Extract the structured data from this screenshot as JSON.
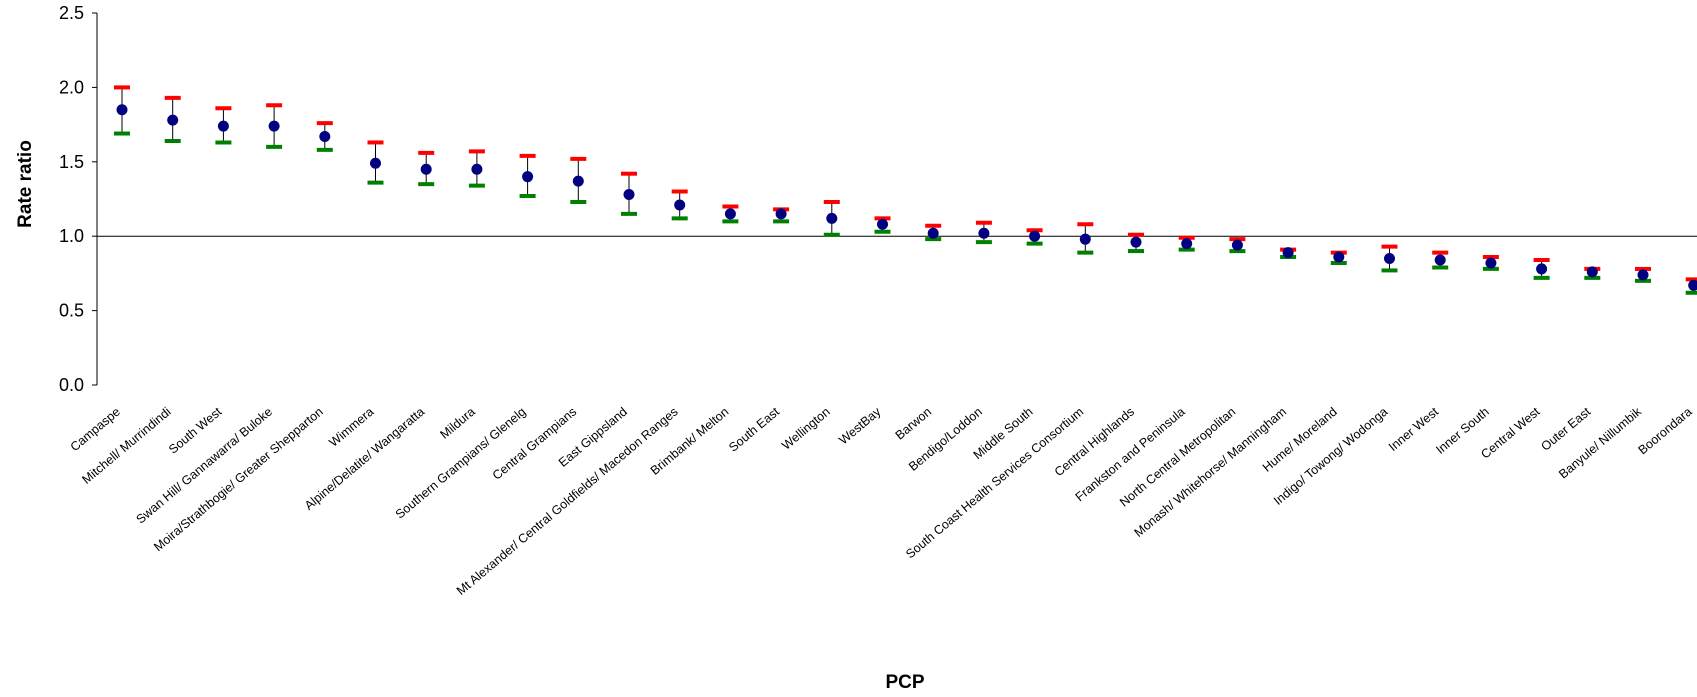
{
  "chart_data": {
    "type": "scatter",
    "title": "",
    "xlabel": "PCP",
    "ylabel": "Rate ratio",
    "ylim": [
      0,
      2.5
    ],
    "yticks": [
      "0.0",
      "0.5",
      "1.0",
      "1.5",
      "2.0",
      "2.5"
    ],
    "reference_line": 1.0,
    "grid": false,
    "colors": {
      "point": "#000080",
      "upper": "#ff0000",
      "lower": "#008000",
      "axis": "#000000"
    },
    "categories": [
      "Campaspe",
      "Mitchell/ Murrindindi",
      "South West",
      "Swan Hill/ Gannawarra/ Buloke",
      "Moira/Strathbogie/ Greater Shepparton",
      "Wimmera",
      "Alpine/Delatite/ Wangaratta",
      "Mildura",
      "Southern Grampians/ Glenelg",
      "Central Grampians",
      "East Gippsland",
      "Mt Alexander/ Central Goldfields/ Macedon Ranges",
      "Brimbank/ Melton",
      "South East",
      "Wellington",
      "WestBay",
      "Barwon",
      "Bendigo/Loddon",
      "Middle South",
      "South Coast Health Services Consortium",
      "Central Highlands",
      "Frankston and Peninsula",
      "North Central Metropolitan",
      "Monash/ Whitehorse/ Manningham",
      "Hume/ Moreland",
      "Indigo/ Towong/ Wodonga",
      "Inner West",
      "Inner South",
      "Central West",
      "Outer East",
      "Banyule/ Nillumbik",
      "Boorondara"
    ],
    "series": [
      {
        "name": "",
        "values": [
          1.85,
          1.78,
          1.74,
          1.74,
          1.67,
          1.49,
          1.45,
          1.45,
          1.4,
          1.37,
          1.28,
          1.21,
          1.15,
          1.15,
          1.12,
          1.08,
          1.02,
          1.02,
          1.0,
          0.98,
          0.96,
          0.95,
          0.94,
          0.89,
          0.86,
          0.85,
          0.84,
          0.82,
          0.78,
          0.76,
          0.74,
          0.67
        ]
      },
      {
        "name": "",
        "values": [
          2.0,
          1.93,
          1.86,
          1.88,
          1.76,
          1.63,
          1.56,
          1.57,
          1.54,
          1.52,
          1.42,
          1.3,
          1.2,
          1.18,
          1.23,
          1.12,
          1.07,
          1.09,
          1.04,
          1.08,
          1.01,
          0.99,
          0.98,
          0.91,
          0.89,
          0.93,
          0.89,
          0.86,
          0.84,
          0.78,
          0.78,
          0.71
        ]
      },
      {
        "name": "",
        "values": [
          1.69,
          1.64,
          1.63,
          1.6,
          1.58,
          1.36,
          1.35,
          1.34,
          1.27,
          1.23,
          1.15,
          1.12,
          1.1,
          1.1,
          1.01,
          1.03,
          0.98,
          0.96,
          0.95,
          0.89,
          0.9,
          0.91,
          0.9,
          0.86,
          0.82,
          0.77,
          0.79,
          0.78,
          0.72,
          0.72,
          0.7,
          0.62
        ]
      }
    ]
  }
}
